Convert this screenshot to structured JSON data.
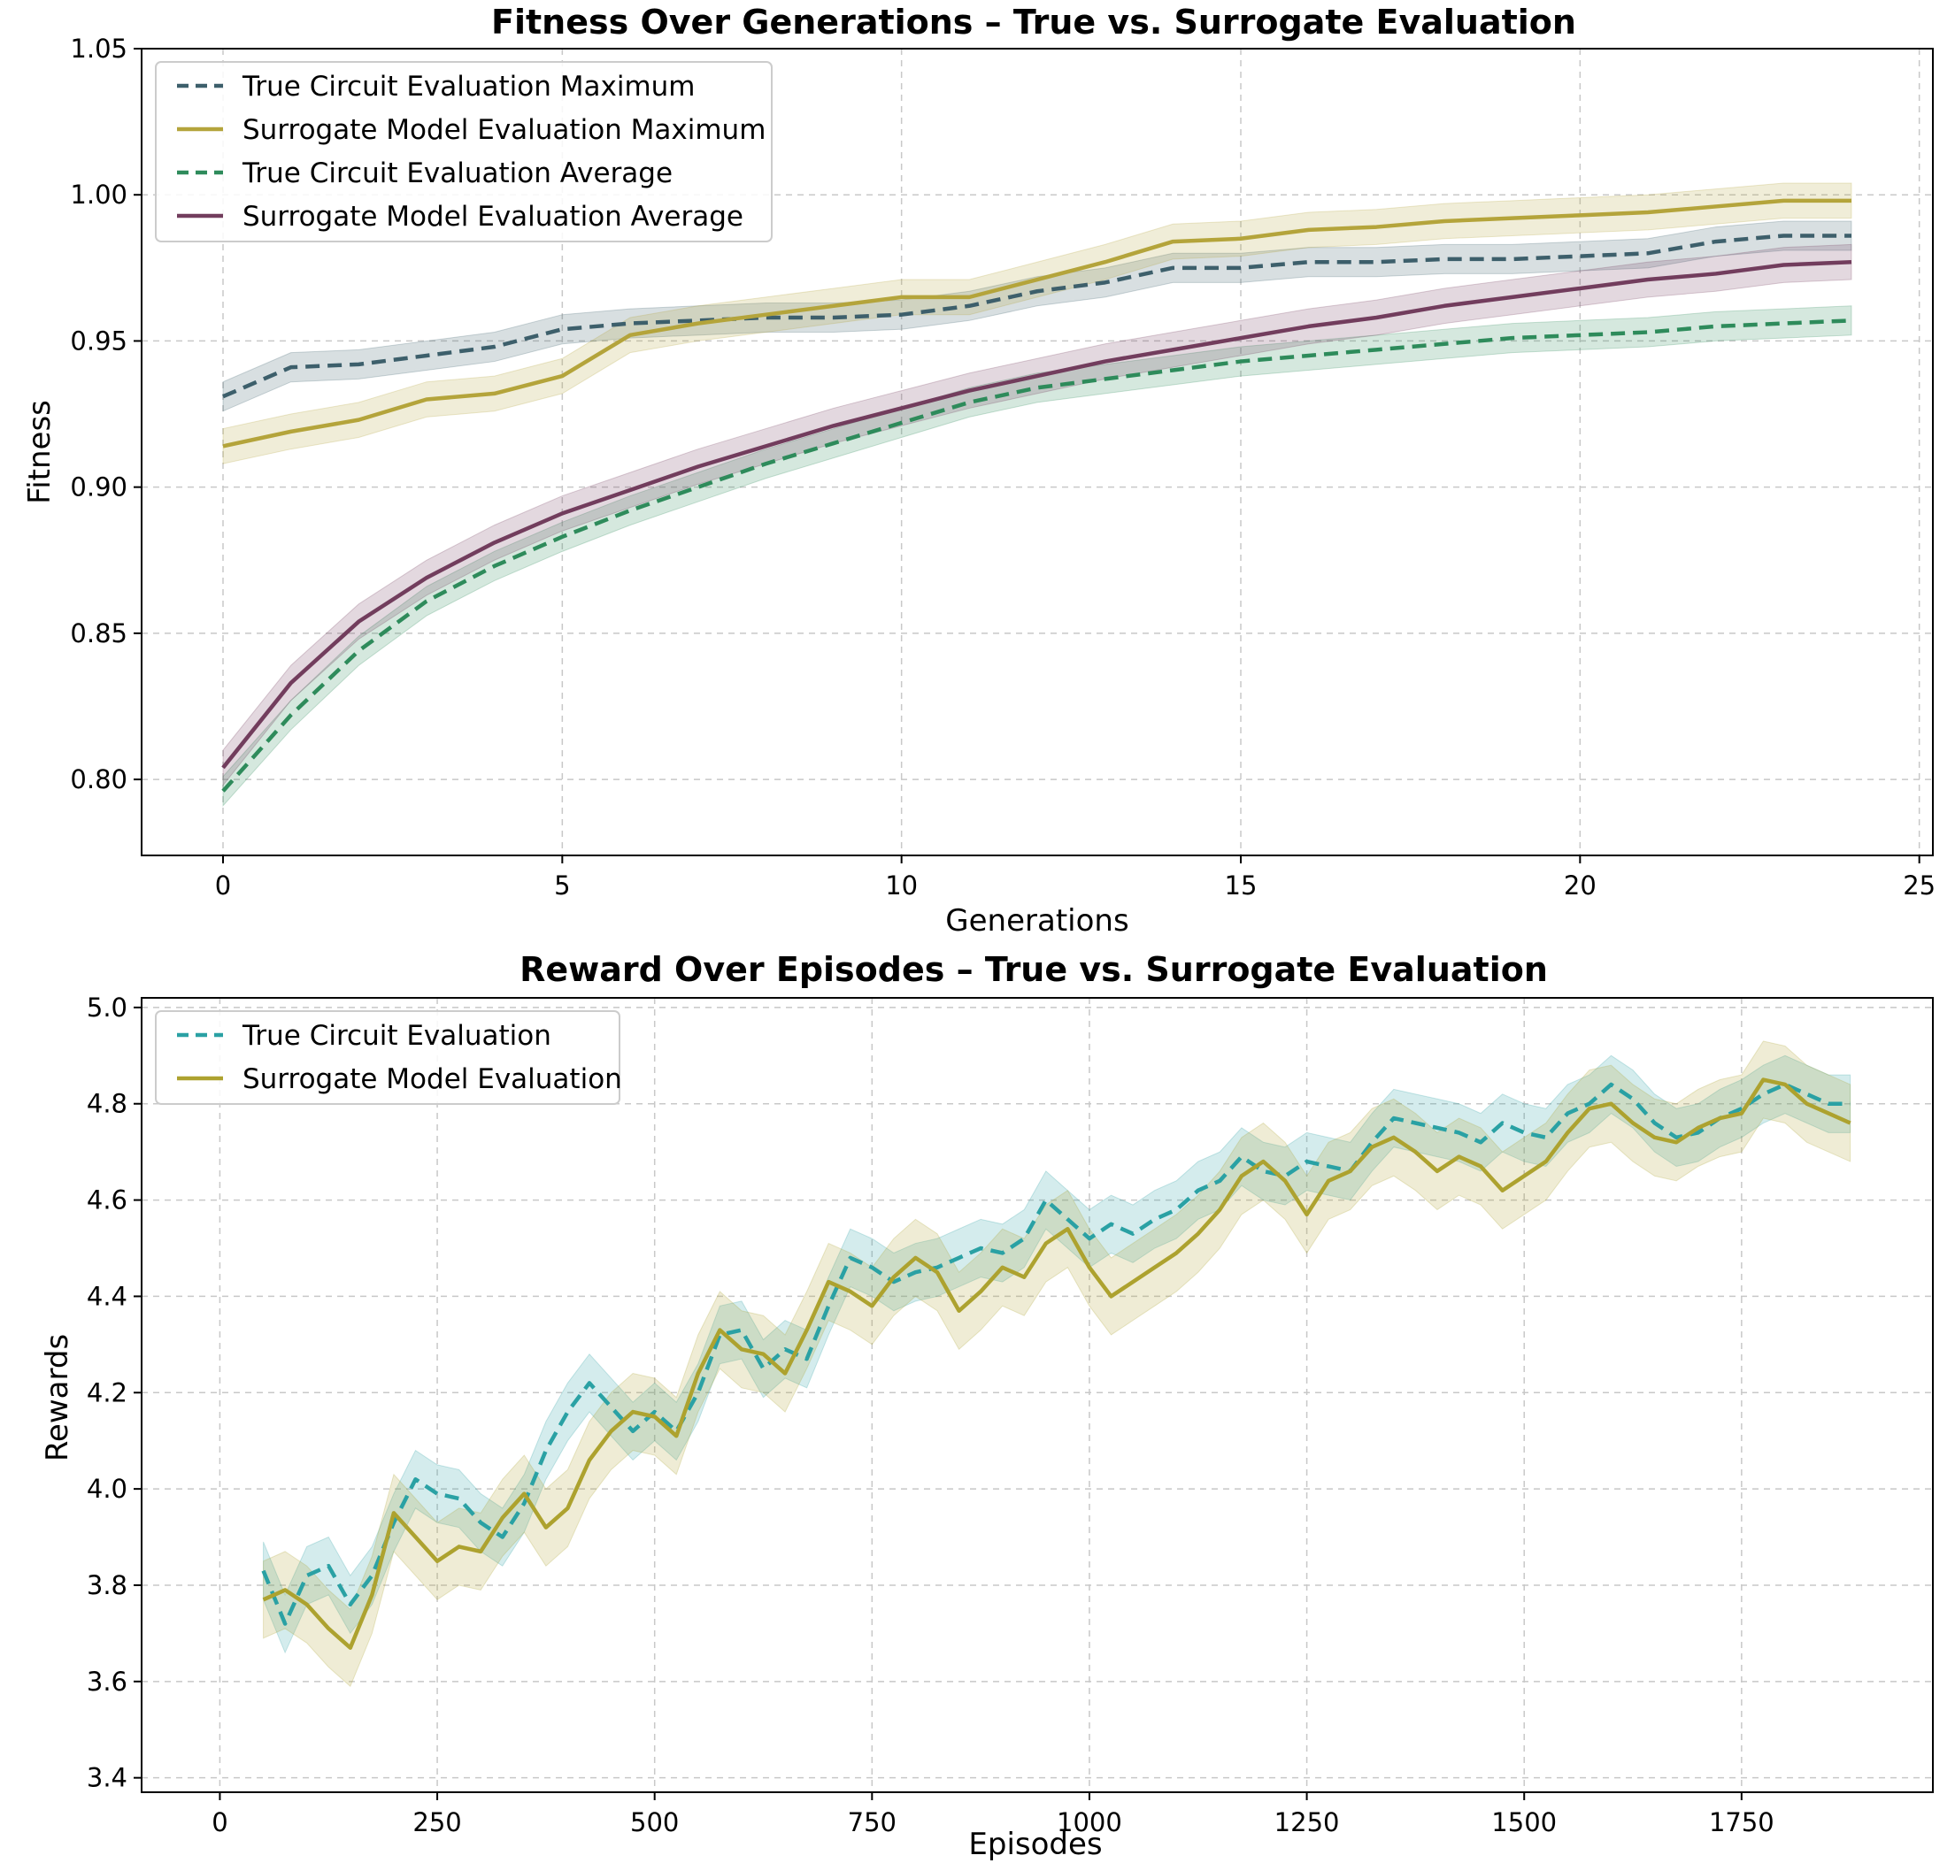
{
  "chart_data": [
    {
      "type": "line",
      "title": "Fitness Over Generations – True vs. Surrogate Evaluation",
      "xlabel": "Generations",
      "ylabel": "Fitness",
      "xlim": [
        -1.2,
        25.2
      ],
      "ylim": [
        0.774,
        1.05
      ],
      "xticks": [
        "0",
        "5",
        "10",
        "15",
        "20",
        "25"
      ],
      "yticks": [
        "0.80",
        "0.85",
        "0.90",
        "0.95",
        "1.00",
        "1.05"
      ],
      "grid": true,
      "legend_position": "top-left",
      "x": [
        0,
        1,
        2,
        3,
        4,
        5,
        6,
        7,
        8,
        9,
        10,
        11,
        12,
        13,
        14,
        15,
        16,
        17,
        18,
        19,
        20,
        21,
        22,
        23,
        24
      ],
      "series": [
        {
          "name": "True Circuit Evaluation Maximum",
          "color": "#3d5f6b",
          "dashed": true,
          "values": [
            0.931,
            0.941,
            0.942,
            0.945,
            0.948,
            0.954,
            0.956,
            0.957,
            0.958,
            0.958,
            0.959,
            0.962,
            0.967,
            0.97,
            0.975,
            0.975,
            0.977,
            0.977,
            0.978,
            0.978,
            0.979,
            0.98,
            0.984,
            0.986,
            0.986
          ],
          "band": 0.005
        },
        {
          "name": "Surrogate Model Evaluation Maximum",
          "color": "#b4a43b",
          "dashed": false,
          "values": [
            0.914,
            0.919,
            0.923,
            0.93,
            0.932,
            0.938,
            0.952,
            0.956,
            0.959,
            0.962,
            0.965,
            0.965,
            0.971,
            0.977,
            0.984,
            0.985,
            0.988,
            0.989,
            0.991,
            0.992,
            0.993,
            0.994,
            0.996,
            0.998,
            0.998
          ],
          "band": 0.006
        },
        {
          "name": "True Circuit Evaluation Average",
          "color": "#2e8b5b",
          "dashed": true,
          "values": [
            0.796,
            0.822,
            0.844,
            0.861,
            0.873,
            0.883,
            0.892,
            0.9,
            0.908,
            0.915,
            0.922,
            0.929,
            0.934,
            0.937,
            0.94,
            0.943,
            0.945,
            0.947,
            0.949,
            0.951,
            0.952,
            0.953,
            0.955,
            0.956,
            0.957
          ],
          "band": 0.005
        },
        {
          "name": "Surrogate Model Evaluation Average",
          "color": "#723d5d",
          "dashed": false,
          "values": [
            0.804,
            0.833,
            0.854,
            0.869,
            0.881,
            0.891,
            0.899,
            0.907,
            0.914,
            0.921,
            0.927,
            0.933,
            0.938,
            0.943,
            0.947,
            0.951,
            0.955,
            0.958,
            0.962,
            0.965,
            0.968,
            0.971,
            0.973,
            0.976,
            0.977
          ],
          "band": 0.006
        }
      ]
    },
    {
      "type": "line",
      "title": "Reward Over Episodes – True vs. Surrogate Evaluation",
      "xlabel": "Episodes",
      "ylabel": "Rewards",
      "xlim": [
        -90,
        1970
      ],
      "ylim": [
        3.37,
        5.02
      ],
      "xticks": [
        "0",
        "250",
        "500",
        "750",
        "1000",
        "1250",
        "1500",
        "1750"
      ],
      "yticks": [
        "3.4",
        "3.6",
        "3.8",
        "4.0",
        "4.2",
        "4.4",
        "4.6",
        "4.8",
        "5.0"
      ],
      "grid": true,
      "legend_position": "top-left",
      "x": [
        50,
        75,
        100,
        125,
        150,
        175,
        200,
        225,
        250,
        275,
        300,
        325,
        350,
        375,
        400,
        425,
        450,
        475,
        500,
        525,
        550,
        575,
        600,
        625,
        650,
        675,
        700,
        725,
        750,
        775,
        800,
        825,
        850,
        875,
        900,
        925,
        950,
        975,
        1000,
        1025,
        1050,
        1075,
        1100,
        1125,
        1150,
        1175,
        1200,
        1225,
        1250,
        1275,
        1300,
        1325,
        1350,
        1375,
        1400,
        1425,
        1450,
        1475,
        1500,
        1525,
        1550,
        1575,
        1600,
        1625,
        1650,
        1675,
        1700,
        1725,
        1750,
        1775,
        1800,
        1825,
        1850,
        1875
      ],
      "series": [
        {
          "name": "True Circuit Evaluation",
          "color": "#2aa1a4",
          "dashed": true,
          "values": [
            3.83,
            3.72,
            3.82,
            3.84,
            3.76,
            3.82,
            3.93,
            4.02,
            3.99,
            3.98,
            3.93,
            3.9,
            3.97,
            4.08,
            4.16,
            4.22,
            4.17,
            4.12,
            4.16,
            4.12,
            4.2,
            4.32,
            4.33,
            4.25,
            4.29,
            4.27,
            4.38,
            4.48,
            4.46,
            4.43,
            4.45,
            4.46,
            4.48,
            4.5,
            4.49,
            4.52,
            4.6,
            4.56,
            4.52,
            4.55,
            4.53,
            4.56,
            4.58,
            4.62,
            4.64,
            4.69,
            4.66,
            4.65,
            4.68,
            4.67,
            4.66,
            4.72,
            4.77,
            4.76,
            4.75,
            4.74,
            4.72,
            4.76,
            4.74,
            4.73,
            4.78,
            4.8,
            4.84,
            4.81,
            4.76,
            4.73,
            4.74,
            4.77,
            4.79,
            4.82,
            4.84,
            4.82,
            4.8,
            4.8
          ],
          "band": 0.06
        },
        {
          "name": "Surrogate Model Evaluation",
          "color": "#ada22f",
          "dashed": false,
          "values": [
            3.77,
            3.79,
            3.76,
            3.71,
            3.67,
            3.78,
            3.95,
            3.9,
            3.85,
            3.88,
            3.87,
            3.94,
            3.99,
            3.92,
            3.96,
            4.06,
            4.12,
            4.16,
            4.15,
            4.11,
            4.24,
            4.33,
            4.29,
            4.28,
            4.24,
            4.33,
            4.43,
            4.41,
            4.38,
            4.44,
            4.48,
            4.45,
            4.37,
            4.41,
            4.46,
            4.44,
            4.51,
            4.54,
            4.46,
            4.4,
            4.43,
            4.46,
            4.49,
            4.53,
            4.58,
            4.65,
            4.68,
            4.64,
            4.57,
            4.64,
            4.66,
            4.71,
            4.73,
            4.7,
            4.66,
            4.69,
            4.67,
            4.62,
            4.65,
            4.68,
            4.74,
            4.79,
            4.8,
            4.76,
            4.73,
            4.72,
            4.75,
            4.77,
            4.78,
            4.85,
            4.84,
            4.8,
            4.78,
            4.76
          ],
          "band": 0.08
        }
      ]
    }
  ]
}
